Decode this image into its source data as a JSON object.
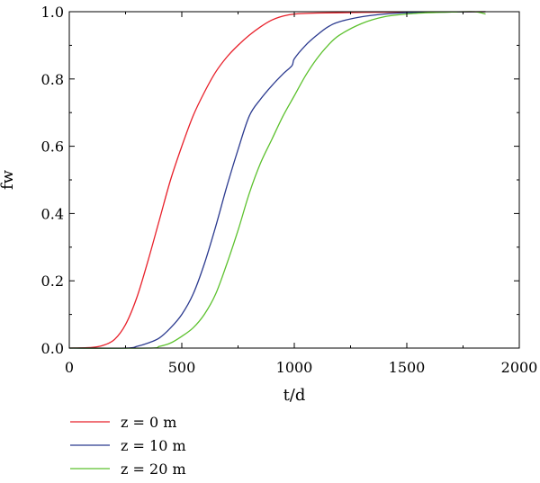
{
  "chart_data": {
    "type": "line",
    "xlabel": "t/d",
    "ylabel": "fw",
    "xlim": [
      0,
      2000
    ],
    "ylim": [
      0,
      1.0
    ],
    "x_ticks": [
      0,
      500,
      1000,
      1500,
      2000
    ],
    "x_tick_labels": [
      "0",
      "500",
      "1000",
      "1500",
      "2000"
    ],
    "y_ticks": [
      0,
      0.2,
      0.4,
      0.6,
      0.8,
      1.0
    ],
    "y_tick_labels": [
      "0.0",
      "0.2",
      "0.4",
      "0.6",
      "0.8",
      "1.0"
    ],
    "grid": false,
    "legend_position": "bottom-left",
    "series": [
      {
        "name": "z = 0 m",
        "color": "#e8202a",
        "points": [
          [
            0,
            0
          ],
          [
            100,
            0.002
          ],
          [
            150,
            0.008
          ],
          [
            200,
            0.025
          ],
          [
            250,
            0.07
          ],
          [
            300,
            0.15
          ],
          [
            350,
            0.26
          ],
          [
            400,
            0.38
          ],
          [
            450,
            0.5
          ],
          [
            500,
            0.6
          ],
          [
            550,
            0.69
          ],
          [
            600,
            0.76
          ],
          [
            650,
            0.82
          ],
          [
            700,
            0.865
          ],
          [
            750,
            0.9
          ],
          [
            800,
            0.93
          ],
          [
            850,
            0.955
          ],
          [
            900,
            0.975
          ],
          [
            950,
            0.987
          ],
          [
            1000,
            0.993
          ],
          [
            1100,
            0.996
          ],
          [
            1300,
            0.998
          ],
          [
            1600,
            0.999
          ],
          [
            1850,
            1.0
          ]
        ]
      },
      {
        "name": "z = 10 m",
        "color": "#2b3a8f",
        "points": [
          [
            0,
            0
          ],
          [
            250,
            0.0
          ],
          [
            300,
            0.005
          ],
          [
            350,
            0.015
          ],
          [
            400,
            0.03
          ],
          [
            450,
            0.06
          ],
          [
            500,
            0.1
          ],
          [
            550,
            0.16
          ],
          [
            600,
            0.25
          ],
          [
            650,
            0.36
          ],
          [
            700,
            0.48
          ],
          [
            750,
            0.59
          ],
          [
            800,
            0.69
          ],
          [
            850,
            0.74
          ],
          [
            900,
            0.78
          ],
          [
            950,
            0.815
          ],
          [
            990,
            0.84
          ],
          [
            1000,
            0.86
          ],
          [
            1050,
            0.9
          ],
          [
            1100,
            0.93
          ],
          [
            1150,
            0.955
          ],
          [
            1200,
            0.97
          ],
          [
            1300,
            0.985
          ],
          [
            1400,
            0.993
          ],
          [
            1500,
            0.997
          ],
          [
            1700,
            0.999
          ],
          [
            1850,
            1.0
          ]
        ]
      },
      {
        "name": "z = 20 m",
        "color": "#5cc12d",
        "points": [
          [
            0,
            0
          ],
          [
            350,
            0.0
          ],
          [
            400,
            0.005
          ],
          [
            450,
            0.015
          ],
          [
            500,
            0.035
          ],
          [
            550,
            0.06
          ],
          [
            600,
            0.1
          ],
          [
            650,
            0.16
          ],
          [
            700,
            0.25
          ],
          [
            750,
            0.35
          ],
          [
            800,
            0.46
          ],
          [
            850,
            0.55
          ],
          [
            900,
            0.62
          ],
          [
            950,
            0.69
          ],
          [
            1000,
            0.75
          ],
          [
            1050,
            0.81
          ],
          [
            1100,
            0.86
          ],
          [
            1150,
            0.9
          ],
          [
            1200,
            0.93
          ],
          [
            1300,
            0.965
          ],
          [
            1400,
            0.985
          ],
          [
            1500,
            0.993
          ],
          [
            1600,
            0.997
          ],
          [
            1700,
            0.999
          ],
          [
            1800,
            1.0
          ],
          [
            1850,
            0.993
          ]
        ]
      }
    ]
  }
}
